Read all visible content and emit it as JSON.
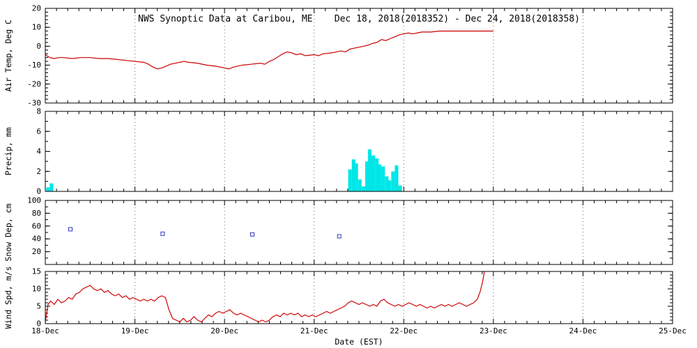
{
  "title": "NWS Synoptic Data at Caribou, ME    Dec 18, 2018(2018352) - Dec 24, 2018(2018358)",
  "colors": {
    "line": "#cc0000",
    "precip": "#00e6e6",
    "snow": "#3333bb",
    "frame": "#000000",
    "grid": "#666666"
  },
  "xaxis": {
    "lim": [
      18,
      25
    ],
    "tickvals": [
      18,
      19,
      20,
      21,
      22,
      23,
      24,
      25
    ],
    "ticklabels": [
      "18-Dec",
      "19-Dec",
      "20-Dec",
      "21-Dec",
      "22-Dec",
      "23-Dec",
      "24-Dec",
      "25-Dec"
    ],
    "label": "Date (EST)"
  },
  "chart_data": [
    {
      "type": "line",
      "name": "air-temp",
      "ylabel": "Air Temp, Deg C",
      "ylim": [
        -30,
        20
      ],
      "yticks": [
        -30,
        -20,
        -10,
        0,
        10,
        20
      ],
      "yminor": 2,
      "points": [
        [
          18.0,
          -4.5
        ],
        [
          18.05,
          -6
        ],
        [
          18.1,
          -6.5
        ],
        [
          18.15,
          -6
        ],
        [
          18.2,
          -6
        ],
        [
          18.3,
          -6.5
        ],
        [
          18.4,
          -6
        ],
        [
          18.5,
          -6
        ],
        [
          18.6,
          -6.5
        ],
        [
          18.7,
          -6.5
        ],
        [
          18.8,
          -7
        ],
        [
          18.9,
          -7.5
        ],
        [
          19.0,
          -8
        ],
        [
          19.1,
          -8.5
        ],
        [
          19.15,
          -9.5
        ],
        [
          19.2,
          -11
        ],
        [
          19.25,
          -12
        ],
        [
          19.3,
          -11.5
        ],
        [
          19.4,
          -9.5
        ],
        [
          19.5,
          -8.5
        ],
        [
          19.55,
          -8
        ],
        [
          19.6,
          -8.5
        ],
        [
          19.7,
          -9
        ],
        [
          19.8,
          -10
        ],
        [
          19.9,
          -10.5
        ],
        [
          20.0,
          -11.5
        ],
        [
          20.05,
          -12
        ],
        [
          20.1,
          -11
        ],
        [
          20.2,
          -10
        ],
        [
          20.3,
          -9.5
        ],
        [
          20.4,
          -9
        ],
        [
          20.45,
          -9.5
        ],
        [
          20.5,
          -8
        ],
        [
          20.55,
          -7
        ],
        [
          20.6,
          -5.5
        ],
        [
          20.65,
          -4
        ],
        [
          20.7,
          -3
        ],
        [
          20.75,
          -3.5
        ],
        [
          20.8,
          -4.5
        ],
        [
          20.85,
          -4
        ],
        [
          20.9,
          -5
        ],
        [
          21.0,
          -4.5
        ],
        [
          21.05,
          -5
        ],
        [
          21.1,
          -4
        ],
        [
          21.2,
          -3.5
        ],
        [
          21.3,
          -2.5
        ],
        [
          21.35,
          -3
        ],
        [
          21.4,
          -1.5
        ],
        [
          21.5,
          -0.5
        ],
        [
          21.55,
          0
        ],
        [
          21.6,
          0.5
        ],
        [
          21.65,
          1.5
        ],
        [
          21.7,
          2
        ],
        [
          21.75,
          3.5
        ],
        [
          21.8,
          3
        ],
        [
          21.85,
          4
        ],
        [
          21.9,
          5
        ],
        [
          21.95,
          6
        ],
        [
          22.0,
          6.5
        ],
        [
          22.05,
          7
        ],
        [
          22.1,
          6.5
        ],
        [
          22.15,
          7
        ],
        [
          22.2,
          7.5
        ],
        [
          22.3,
          7.5
        ],
        [
          22.4,
          8
        ],
        [
          22.5,
          8
        ],
        [
          22.6,
          8
        ],
        [
          22.7,
          8
        ],
        [
          22.8,
          8
        ],
        [
          22.9,
          8
        ],
        [
          23.0,
          8
        ]
      ]
    },
    {
      "type": "bar",
      "name": "precip",
      "ylabel": "Precip, mm",
      "ylim": [
        0,
        8
      ],
      "yticks": [
        0,
        2,
        4,
        6,
        8
      ],
      "yminor": 1,
      "barwidth": 0.04,
      "points": [
        [
          18.03,
          0.4
        ],
        [
          18.07,
          0.8
        ],
        [
          21.4,
          2.2
        ],
        [
          21.44,
          3.2
        ],
        [
          21.47,
          2.8
        ],
        [
          21.51,
          1.2
        ],
        [
          21.55,
          0.5
        ],
        [
          21.59,
          3.0
        ],
        [
          21.62,
          4.2
        ],
        [
          21.66,
          3.6
        ],
        [
          21.7,
          3.3
        ],
        [
          21.73,
          2.7
        ],
        [
          21.77,
          2.5
        ],
        [
          21.81,
          1.5
        ],
        [
          21.84,
          1.1
        ],
        [
          21.88,
          2.0
        ],
        [
          21.92,
          2.6
        ],
        [
          21.96,
          0.6
        ]
      ]
    },
    {
      "type": "scatter",
      "name": "snow-depth",
      "ylabel": "Snow Dep, cm",
      "ylim": [
        0,
        100
      ],
      "yticks": [
        20,
        40,
        60,
        80,
        100
      ],
      "yminor": 10,
      "points": [
        [
          18.28,
          55
        ],
        [
          19.31,
          48
        ],
        [
          20.31,
          47
        ],
        [
          21.28,
          44
        ]
      ]
    },
    {
      "type": "line",
      "name": "wind-speed",
      "ylabel": "Wind Spd, m/s",
      "ylim": [
        0,
        15
      ],
      "yticks": [
        0,
        5,
        10,
        15
      ],
      "yminor": 1,
      "points": [
        [
          18.0,
          0.5
        ],
        [
          18.03,
          5.5
        ],
        [
          18.06,
          6.5
        ],
        [
          18.1,
          5.5
        ],
        [
          18.14,
          7
        ],
        [
          18.18,
          6
        ],
        [
          18.22,
          6.5
        ],
        [
          18.26,
          7.5
        ],
        [
          18.3,
          7
        ],
        [
          18.34,
          8.5
        ],
        [
          18.38,
          9
        ],
        [
          18.42,
          10
        ],
        [
          18.46,
          10.5
        ],
        [
          18.5,
          11
        ],
        [
          18.54,
          10
        ],
        [
          18.58,
          9.5
        ],
        [
          18.62,
          10
        ],
        [
          18.66,
          9
        ],
        [
          18.7,
          9.5
        ],
        [
          18.74,
          8.5
        ],
        [
          18.78,
          8
        ],
        [
          18.82,
          8.5
        ],
        [
          18.86,
          7.5
        ],
        [
          18.9,
          8
        ],
        [
          18.94,
          7
        ],
        [
          18.98,
          7.5
        ],
        [
          19.02,
          7
        ],
        [
          19.06,
          6.5
        ],
        [
          19.1,
          7
        ],
        [
          19.14,
          6.5
        ],
        [
          19.18,
          7
        ],
        [
          19.22,
          6.5
        ],
        [
          19.26,
          7.5
        ],
        [
          19.3,
          8
        ],
        [
          19.34,
          7.5
        ],
        [
          19.38,
          4
        ],
        [
          19.42,
          1.5
        ],
        [
          19.46,
          1
        ],
        [
          19.5,
          0.5
        ],
        [
          19.54,
          1.5
        ],
        [
          19.58,
          0.5
        ],
        [
          19.62,
          1
        ],
        [
          19.66,
          2
        ],
        [
          19.7,
          1
        ],
        [
          19.74,
          0.5
        ],
        [
          19.78,
          1.5
        ],
        [
          19.82,
          2.5
        ],
        [
          19.86,
          2
        ],
        [
          19.9,
          3
        ],
        [
          19.94,
          3.5
        ],
        [
          19.98,
          3
        ],
        [
          20.02,
          3.5
        ],
        [
          20.06,
          4
        ],
        [
          20.1,
          3
        ],
        [
          20.14,
          2.5
        ],
        [
          20.18,
          3
        ],
        [
          20.22,
          2.5
        ],
        [
          20.26,
          2
        ],
        [
          20.3,
          1.5
        ],
        [
          20.34,
          1
        ],
        [
          20.38,
          0.5
        ],
        [
          20.42,
          1
        ],
        [
          20.46,
          0.5
        ],
        [
          20.5,
          1
        ],
        [
          20.54,
          2
        ],
        [
          20.58,
          2.5
        ],
        [
          20.62,
          2
        ],
        [
          20.66,
          3
        ],
        [
          20.7,
          2.5
        ],
        [
          20.74,
          3
        ],
        [
          20.78,
          2.5
        ],
        [
          20.82,
          3
        ],
        [
          20.86,
          2
        ],
        [
          20.9,
          2.5
        ],
        [
          20.94,
          2
        ],
        [
          20.98,
          2.5
        ],
        [
          21.02,
          2
        ],
        [
          21.06,
          2.5
        ],
        [
          21.1,
          3
        ],
        [
          21.14,
          3.5
        ],
        [
          21.18,
          3
        ],
        [
          21.22,
          3.5
        ],
        [
          21.26,
          4
        ],
        [
          21.3,
          4.5
        ],
        [
          21.34,
          5
        ],
        [
          21.38,
          6
        ],
        [
          21.42,
          6.5
        ],
        [
          21.46,
          6
        ],
        [
          21.5,
          5.5
        ],
        [
          21.54,
          6
        ],
        [
          21.58,
          5.5
        ],
        [
          21.62,
          5
        ],
        [
          21.66,
          5.5
        ],
        [
          21.7,
          5
        ],
        [
          21.74,
          6.5
        ],
        [
          21.78,
          7
        ],
        [
          21.82,
          6
        ],
        [
          21.86,
          5.5
        ],
        [
          21.9,
          5
        ],
        [
          21.94,
          5.5
        ],
        [
          21.98,
          5
        ],
        [
          22.02,
          5.5
        ],
        [
          22.06,
          6
        ],
        [
          22.1,
          5.5
        ],
        [
          22.14,
          5
        ],
        [
          22.18,
          5.5
        ],
        [
          22.22,
          5
        ],
        [
          22.26,
          4.5
        ],
        [
          22.3,
          5
        ],
        [
          22.34,
          4.5
        ],
        [
          22.38,
          5
        ],
        [
          22.42,
          5.5
        ],
        [
          22.46,
          5
        ],
        [
          22.5,
          5.5
        ],
        [
          22.54,
          5
        ],
        [
          22.58,
          5.5
        ],
        [
          22.62,
          6
        ],
        [
          22.66,
          5.5
        ],
        [
          22.7,
          5
        ],
        [
          22.74,
          5.5
        ],
        [
          22.78,
          6
        ],
        [
          22.82,
          7
        ],
        [
          22.85,
          9
        ],
        [
          22.88,
          12
        ],
        [
          22.9,
          15.5
        ]
      ]
    }
  ]
}
